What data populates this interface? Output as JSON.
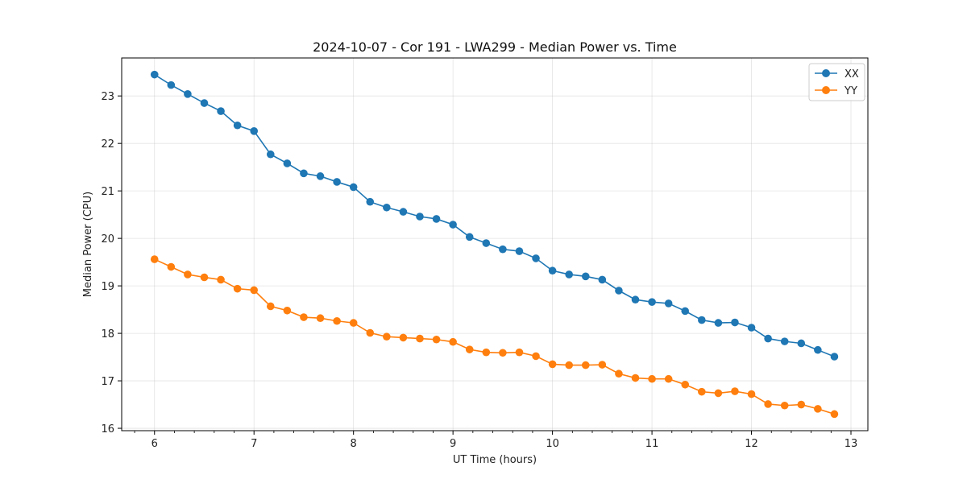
{
  "chart_data": {
    "type": "line",
    "title": "2024-10-07 - Cor 191 - LWA299 - Median Power vs. Time",
    "xlabel": "UT Time (hours)",
    "ylabel": "Median Power (CPU)",
    "xlim": [
      5.67,
      13.17
    ],
    "ylim": [
      15.95,
      23.8
    ],
    "xticks": [
      6,
      7,
      8,
      9,
      10,
      11,
      12,
      13
    ],
    "xtick_labels": [
      "6",
      "7",
      "8",
      "9",
      "10",
      "11",
      "12",
      "13"
    ],
    "yticks": [
      16,
      17,
      18,
      19,
      20,
      21,
      22,
      23
    ],
    "ytick_labels": [
      "16",
      "17",
      "18",
      "19",
      "20",
      "21",
      "22",
      "23"
    ],
    "grid": true,
    "legend_position": "top-right",
    "x": [
      6.0,
      6.1667,
      6.3333,
      6.5,
      6.6667,
      6.8333,
      7.0,
      7.1667,
      7.3333,
      7.5,
      7.6667,
      7.8333,
      8.0,
      8.1667,
      8.3333,
      8.5,
      8.6667,
      8.8333,
      9.0,
      9.1667,
      9.3333,
      9.5,
      9.6667,
      9.8333,
      10.0,
      10.1667,
      10.3333,
      10.5,
      10.6667,
      10.8333,
      11.0,
      11.1667,
      11.3333,
      11.5,
      11.6667,
      11.8333,
      12.0,
      12.1667,
      12.3333,
      12.5,
      12.6667,
      12.8333
    ],
    "series": [
      {
        "name": "XX",
        "color": "#1f77b4",
        "values": [
          23.45,
          23.23,
          23.04,
          22.85,
          22.68,
          22.38,
          22.26,
          21.77,
          21.58,
          21.37,
          21.31,
          21.19,
          21.08,
          20.77,
          20.65,
          20.56,
          20.46,
          20.41,
          20.29,
          20.03,
          19.9,
          19.77,
          19.73,
          19.58,
          19.32,
          19.24,
          19.2,
          19.13,
          18.9,
          18.71,
          18.66,
          18.63,
          18.47,
          18.28,
          18.22,
          18.23,
          18.12,
          17.89,
          17.83,
          17.79,
          17.65,
          17.51
        ]
      },
      {
        "name": "YY",
        "color": "#ff7f0e",
        "values": [
          19.56,
          19.4,
          19.24,
          19.18,
          19.13,
          18.94,
          18.91,
          18.57,
          18.48,
          18.34,
          18.32,
          18.26,
          18.22,
          18.01,
          17.93,
          17.91,
          17.89,
          17.87,
          17.82,
          17.66,
          17.6,
          17.59,
          17.6,
          17.52,
          17.35,
          17.33,
          17.33,
          17.34,
          17.15,
          17.06,
          17.04,
          17.04,
          16.92,
          16.77,
          16.74,
          16.78,
          16.72,
          16.51,
          16.48,
          16.5,
          16.41,
          16.3
        ]
      }
    ]
  }
}
